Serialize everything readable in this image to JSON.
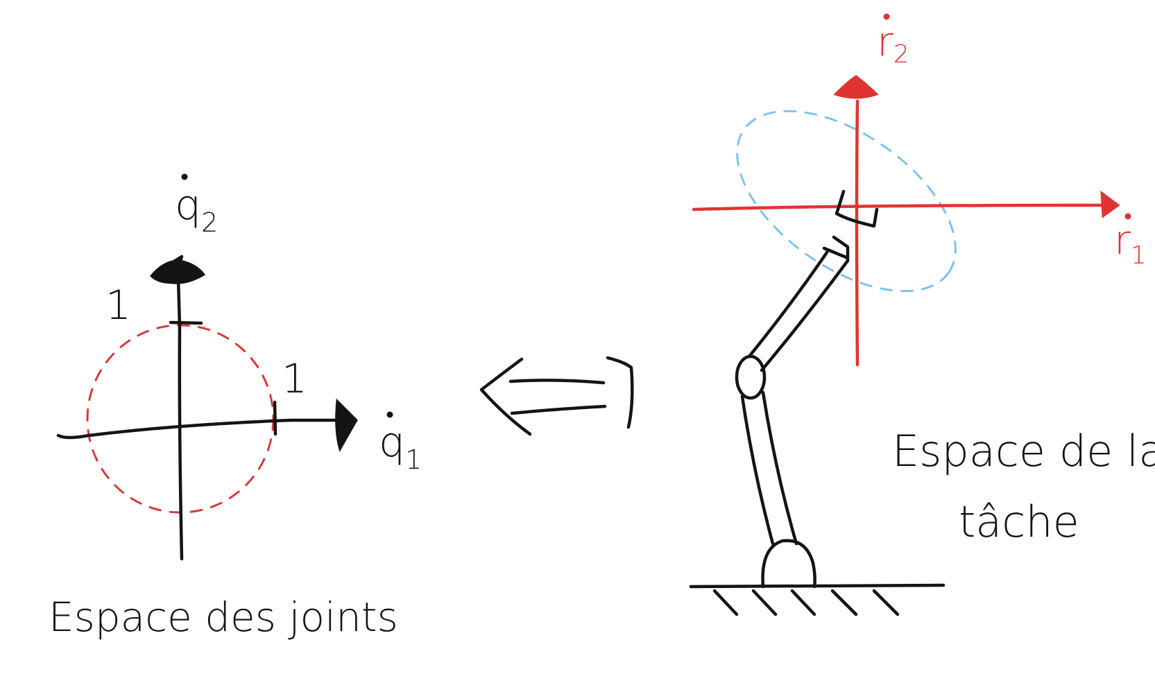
{
  "joint_space": {
    "caption": "Espace des joints",
    "axis_x_label": "q",
    "axis_x_sub": "1",
    "axis_y_label": "q",
    "axis_y_sub": "2",
    "tick_x": "1",
    "tick_y": "1"
  },
  "task_space": {
    "caption_line1": "Espace de la",
    "caption_line2": "tâche",
    "axis_x_label": "r",
    "axis_x_sub": "1",
    "axis_y_label": "r",
    "axis_y_sub": "2"
  },
  "colors": {
    "ink": "#141414",
    "task_axes": "#e03434",
    "unit_circle": "#d63a3a",
    "ellipse": "#7cc4ea"
  }
}
